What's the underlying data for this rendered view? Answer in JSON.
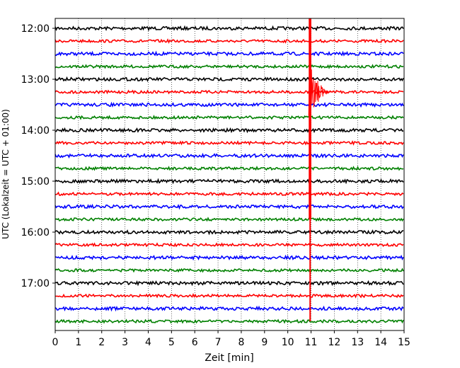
{
  "chart_data": {
    "type": "line",
    "title": "",
    "xlabel": "Zeit  [min]",
    "ylabel": "UTC (Lokalzeit = UTC + 01:00)",
    "xlim": [
      0,
      15
    ],
    "x_ticks": [
      "0",
      "1",
      "2",
      "3",
      "4",
      "5",
      "6",
      "7",
      "8",
      "9",
      "10",
      "11",
      "12",
      "13",
      "14",
      "15"
    ],
    "y_ticks": [
      {
        "label": "12:00",
        "trace": 0
      },
      {
        "label": "13:00",
        "trace": 4
      },
      {
        "label": "14:00",
        "trace": 8
      },
      {
        "label": "15:00",
        "trace": 12
      },
      {
        "label": "16:00",
        "trace": 16
      },
      {
        "label": "17:00",
        "trace": 20
      }
    ],
    "grid": "vertical-dotted",
    "trace_interval_minutes": 15,
    "trace_count": 24,
    "first_trace_time": "12:00",
    "colors": [
      "#000000",
      "#ff0000",
      "#0000ff",
      "#008000"
    ],
    "events": [
      {
        "type": "clipped-spike",
        "x_start": 10.9,
        "x_end": 11.1,
        "first_trace": 0,
        "last_trace": 23,
        "color": "#ff0000"
      },
      {
        "type": "coda",
        "x_start": 10.9,
        "x_end": 11.9,
        "first_trace": 3,
        "last_trace": 7,
        "color": "#ff0000"
      }
    ]
  }
}
